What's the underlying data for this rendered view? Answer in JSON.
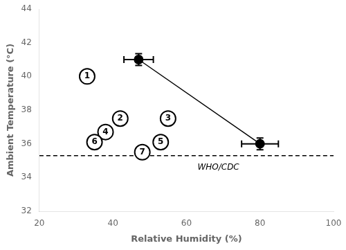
{
  "chart_data": {
    "type": "scatter",
    "xlabel": "Relative Humidity (%)",
    "ylabel": "Ambient Temperature (°C)",
    "xlim": [
      20,
      100
    ],
    "ylim": [
      32,
      44
    ],
    "xticks": [
      20,
      40,
      60,
      80,
      100
    ],
    "yticks": [
      32,
      34,
      36,
      38,
      40,
      42,
      44
    ],
    "grid": false,
    "series": [
      {
        "type": "line",
        "marker": "circle",
        "color": "black",
        "x": [
          47,
          80
        ],
        "values": [
          41,
          36
        ],
        "xerr": [
          4,
          5
        ],
        "yerr": [
          0.35,
          0.35
        ]
      },
      {
        "type": "scatter",
        "marker": "open_circle",
        "color": "black",
        "x": [
          33,
          42,
          55,
          38,
          53,
          35,
          48
        ],
        "values": [
          40.0,
          37.5,
          37.5,
          36.7,
          36.1,
          36.1,
          35.5
        ],
        "point_labels": [
          "1",
          "2",
          "3",
          "4",
          "5",
          "6",
          "7"
        ]
      }
    ],
    "annotations": [
      {
        "type": "hline",
        "y": 35.3,
        "line_style": "dashed",
        "color": "black"
      },
      {
        "type": "text",
        "text": "WHO/CDC",
        "x": 63,
        "y": 34.85
      }
    ]
  }
}
